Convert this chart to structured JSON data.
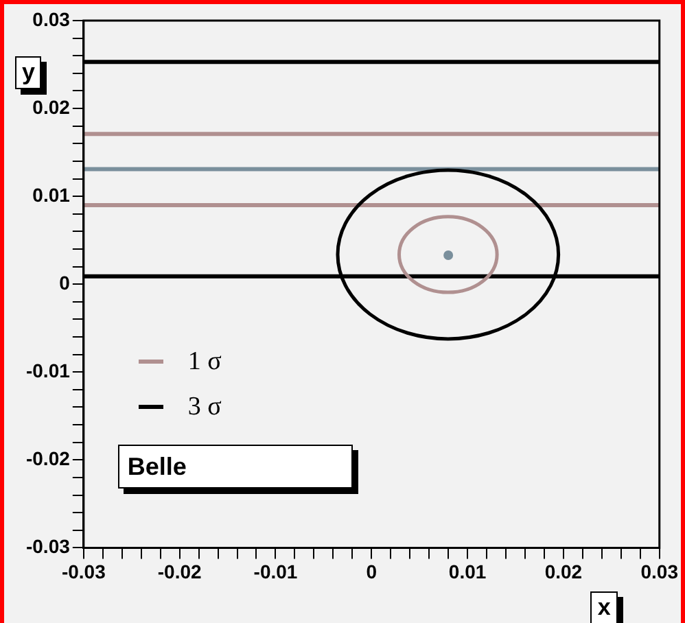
{
  "chart_data": {
    "type": "scatter",
    "xlabel": "x",
    "ylabel": "y",
    "xlim": [
      -0.03,
      0.03
    ],
    "ylim": [
      -0.03,
      0.03
    ],
    "xticks": [
      -0.03,
      {
        "value": -0.028,
        "label": null
      },
      {
        "value": -0.026,
        "label": null
      },
      {
        "value": -0.024,
        "label": null
      },
      {
        "value": -0.022,
        "label": null
      },
      -0.02,
      {
        "value": -0.018,
        "label": null
      },
      {
        "value": -0.016,
        "label": null
      },
      {
        "value": -0.014,
        "label": null
      },
      {
        "value": -0.012,
        "label": null
      },
      -0.01,
      {
        "value": -0.008,
        "label": null
      },
      {
        "value": -0.006,
        "label": null
      },
      {
        "value": -0.004,
        "label": null
      },
      {
        "value": -0.002,
        "label": null
      },
      0,
      {
        "value": 0.002,
        "label": null
      },
      {
        "value": 0.004,
        "label": null
      },
      {
        "value": 0.006,
        "label": null
      },
      {
        "value": 0.008,
        "label": null
      },
      0.01,
      {
        "value": 0.012,
        "label": null
      },
      {
        "value": 0.014,
        "label": null
      },
      {
        "value": 0.016,
        "label": null
      },
      {
        "value": 0.018,
        "label": null
      },
      0.02,
      {
        "value": 0.022,
        "label": null
      },
      {
        "value": 0.024,
        "label": null
      },
      {
        "value": 0.026,
        "label": null
      },
      {
        "value": 0.028,
        "label": null
      },
      0.03
    ],
    "yticks": [
      -0.03,
      {
        "value": -0.028,
        "label": null
      },
      {
        "value": -0.026,
        "label": null
      },
      {
        "value": -0.024,
        "label": null
      },
      {
        "value": -0.022,
        "label": null
      },
      -0.02,
      {
        "value": -0.018,
        "label": null
      },
      {
        "value": -0.016,
        "label": null
      },
      {
        "value": -0.014,
        "label": null
      },
      {
        "value": -0.012,
        "label": null
      },
      -0.01,
      {
        "value": -0.008,
        "label": null
      },
      {
        "value": -0.006,
        "label": null
      },
      {
        "value": -0.004,
        "label": null
      },
      {
        "value": -0.002,
        "label": null
      },
      0,
      {
        "value": 0.002,
        "label": null
      },
      {
        "value": 0.004,
        "label": null
      },
      {
        "value": 0.006,
        "label": null
      },
      {
        "value": 0.008,
        "label": null
      },
      0.01,
      {
        "value": 0.012,
        "label": null
      },
      {
        "value": 0.014,
        "label": null
      },
      {
        "value": 0.016,
        "label": null
      },
      {
        "value": 0.018,
        "label": null
      },
      0.02,
      {
        "value": 0.022,
        "label": null
      },
      {
        "value": 0.024,
        "label": null
      },
      {
        "value": 0.026,
        "label": null
      },
      {
        "value": 0.028,
        "label": null
      },
      0.03
    ],
    "grid": false,
    "marker": "circle",
    "series": [
      {
        "color": "#7a8f9c",
        "x": [
          0.008
        ],
        "values": [
          0.0033
        ]
      }
    ],
    "ref_lines": [
      {
        "axis": "y",
        "value": 0.0253,
        "color": "#000000"
      },
      {
        "axis": "y",
        "value": 0.0171,
        "color": "#b09090"
      },
      {
        "axis": "y",
        "value": 0.0131,
        "color": "#7a8f9c"
      },
      {
        "axis": "y",
        "value": 0.009,
        "color": "#b09090"
      },
      {
        "axis": "y",
        "value": 0.0009,
        "color": "#000000"
      }
    ],
    "annotations": [
      "1 σ",
      "3 σ",
      "Belle"
    ]
  }
}
